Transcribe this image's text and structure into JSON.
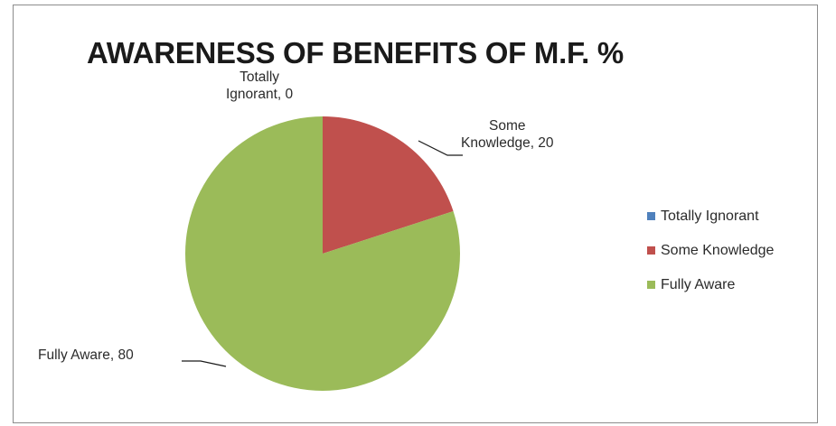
{
  "chart_data": {
    "type": "pie",
    "title": "AWARENESS OF BENEFITS OF M.F. %",
    "categories": [
      "Totally Ignorant",
      "Some Knowledge",
      "Fully Aware"
    ],
    "values": [
      0,
      20,
      80
    ],
    "colors": [
      "#4f81bd",
      "#c0504d",
      "#9bbb59"
    ],
    "data_labels": [
      [
        "Totally",
        "Ignorant, 0"
      ],
      [
        "Some",
        "Knowledge, 20"
      ],
      [
        "Fully Aware, 80"
      ]
    ],
    "legend": {
      "position": "right",
      "entries": [
        "Totally Ignorant",
        "Some Knowledge",
        "Fully Aware"
      ]
    }
  }
}
